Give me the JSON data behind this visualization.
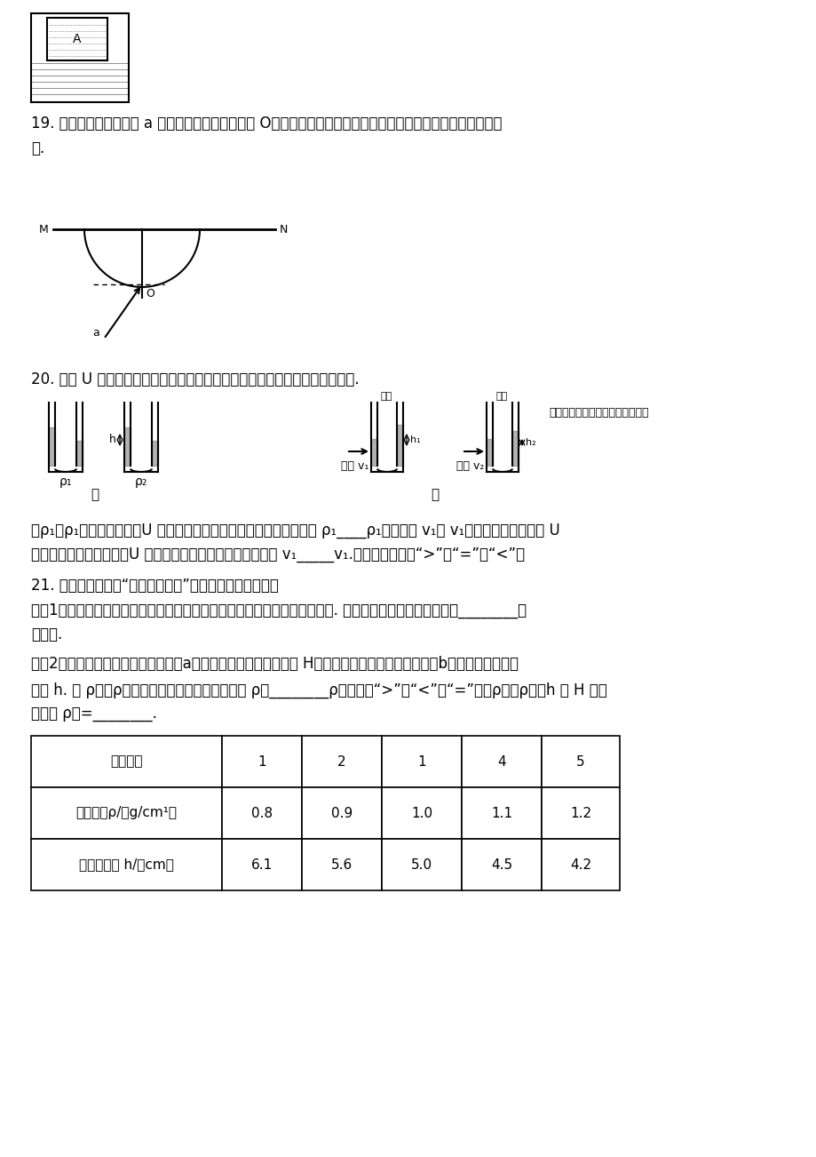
{
  "bg_color": "#ffffff",
  "fs": 12,
  "fc": "#000000",
  "q19_line1": "19. 如图所示，一束激光 a 斜射向半圆形玻璃砖圆心 O，结果在屏幕上出现两个光斑，请画出形成两个光斑的光路",
  "q19_line2": "图.",
  "q20_line1": "20. 利用 U 形管液面高度差的大小关系，可以帮助我们比较一些物理量的大小.",
  "q20_fill1": "为ρ₁和ρ₁的两种液体中，U 形管液面的高度差相同，如图甲所示，则 ρ₁____ρ₁；速度是 v₁和 v₁的气流，分别经过与 U",
  "q20_fill2": "形管左端相连的管子时，U 形管液面的高度差如图乙所示，则 v₁_____v₁.（以上两空均填“>”、“=”或“<”）",
  "q21_line1": "21. 小明按照教材中“综合实践活动”的要求制作简易密度计",
  "q21_line2": "（）1）取一根粗细均匀的饮料吸管，在其下端塞入适量金属丝并用石蜡封口. 塞入金属丝的目的是使吸管能________在",
  "q21_line3": "液体中.",
  "q21_line4": "（）2）将吸管放到水中的情景如图（a）所示，测得浸入的长度为 H；放到另一液体中的情景如图（b）所示，浸入的长",
  "q21_line5": "度为 h. 用 ρ液、ρ水分别表示液体和水的密度，则 ρ液________ρ水（选填“>”、“<”或“=”），ρ液与ρ水、h 及 H 的关",
  "q21_line6": "系式是 ρ液=________.",
  "table_headers": [
    "实验次数",
    "1",
    "2",
    "1",
    "4",
    "5"
  ],
  "table_row1_label": "液体密度ρ/（g/cm¹）",
  "table_row1_vals": [
    "0.8",
    "0.9",
    "1.0",
    "1.1",
    "1.2"
  ],
  "table_row2_label": "浸入的深度 h/（cm）",
  "table_row2_vals": [
    "6.1",
    "5.6",
    "5.0",
    "4.5",
    "4.2"
  ]
}
